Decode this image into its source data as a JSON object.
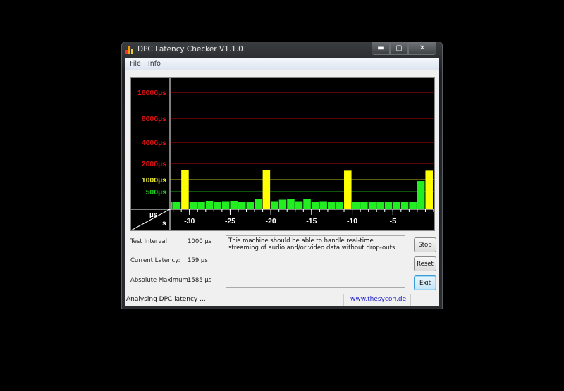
{
  "window": {
    "title": "DPC Latency Checker V1.1.0",
    "controls": [
      "minimize",
      "maximize",
      "close"
    ]
  },
  "menu": [
    "File",
    "Info"
  ],
  "chart_data": {
    "type": "bar",
    "ylabel": "µs",
    "xlabel": "s",
    "y_ticks": [
      {
        "label": "16000µs",
        "value": 16000,
        "color": "#dd1111"
      },
      {
        "label": "8000µs",
        "value": 8000,
        "color": "#dd1111"
      },
      {
        "label": "4000µs",
        "value": 4000,
        "color": "#dd1111"
      },
      {
        "label": "2000µs",
        "value": 2000,
        "color": "#dd1111"
      },
      {
        "label": "1000µs",
        "value": 1000,
        "color": "#e8e830"
      },
      {
        "label": "500µs",
        "value": 500,
        "color": "#22cc22"
      }
    ],
    "x_ticks": [
      {
        "label": "-30",
        "value": -30
      },
      {
        "label": "-25",
        "value": -25
      },
      {
        "label": "-20",
        "value": -20
      },
      {
        "label": "-15",
        "value": -15
      },
      {
        "label": "-10",
        "value": -10
      },
      {
        "label": "-5",
        "value": -5
      }
    ],
    "xlim": [
      -32.4,
      0
    ],
    "bars_end_seconds": [
      -32,
      -31,
      -30,
      -29,
      -28,
      -27,
      -26,
      -25,
      -24,
      -23,
      -22,
      -21,
      -20,
      -19,
      -18,
      -17,
      -16,
      -15,
      -14,
      -13,
      -12,
      -11,
      -10,
      -9,
      -8,
      -7,
      -6,
      -5,
      -4,
      -3,
      -2,
      -1,
      0
    ],
    "values": [
      200,
      200,
      1585,
      200,
      200,
      240,
      200,
      210,
      240,
      200,
      200,
      290,
      1585,
      210,
      270,
      300,
      210,
      300,
      200,
      210,
      200,
      200,
      1550,
      200,
      200,
      200,
      200,
      200,
      200,
      200,
      200,
      940,
      1550
    ],
    "colors": {
      "normal": "#22ee22",
      "high": "#ffff00"
    },
    "grid": true
  },
  "info": {
    "test_interval_label": "Test Interval:",
    "test_interval": "1000 µs",
    "current_latency_label": "Current Latency:",
    "current_latency": "159 µs",
    "absolute_max_label": "Absolute Maximum:",
    "absolute_max": "1585 µs",
    "message": "This machine should be able to handle real-time streaming of audio and/or video data without drop-outs."
  },
  "buttons": {
    "stop": "Stop",
    "reset": "Reset",
    "exit": "Exit"
  },
  "status": {
    "text": "Analysing DPC latency ...",
    "link": "www.thesycon.de"
  }
}
